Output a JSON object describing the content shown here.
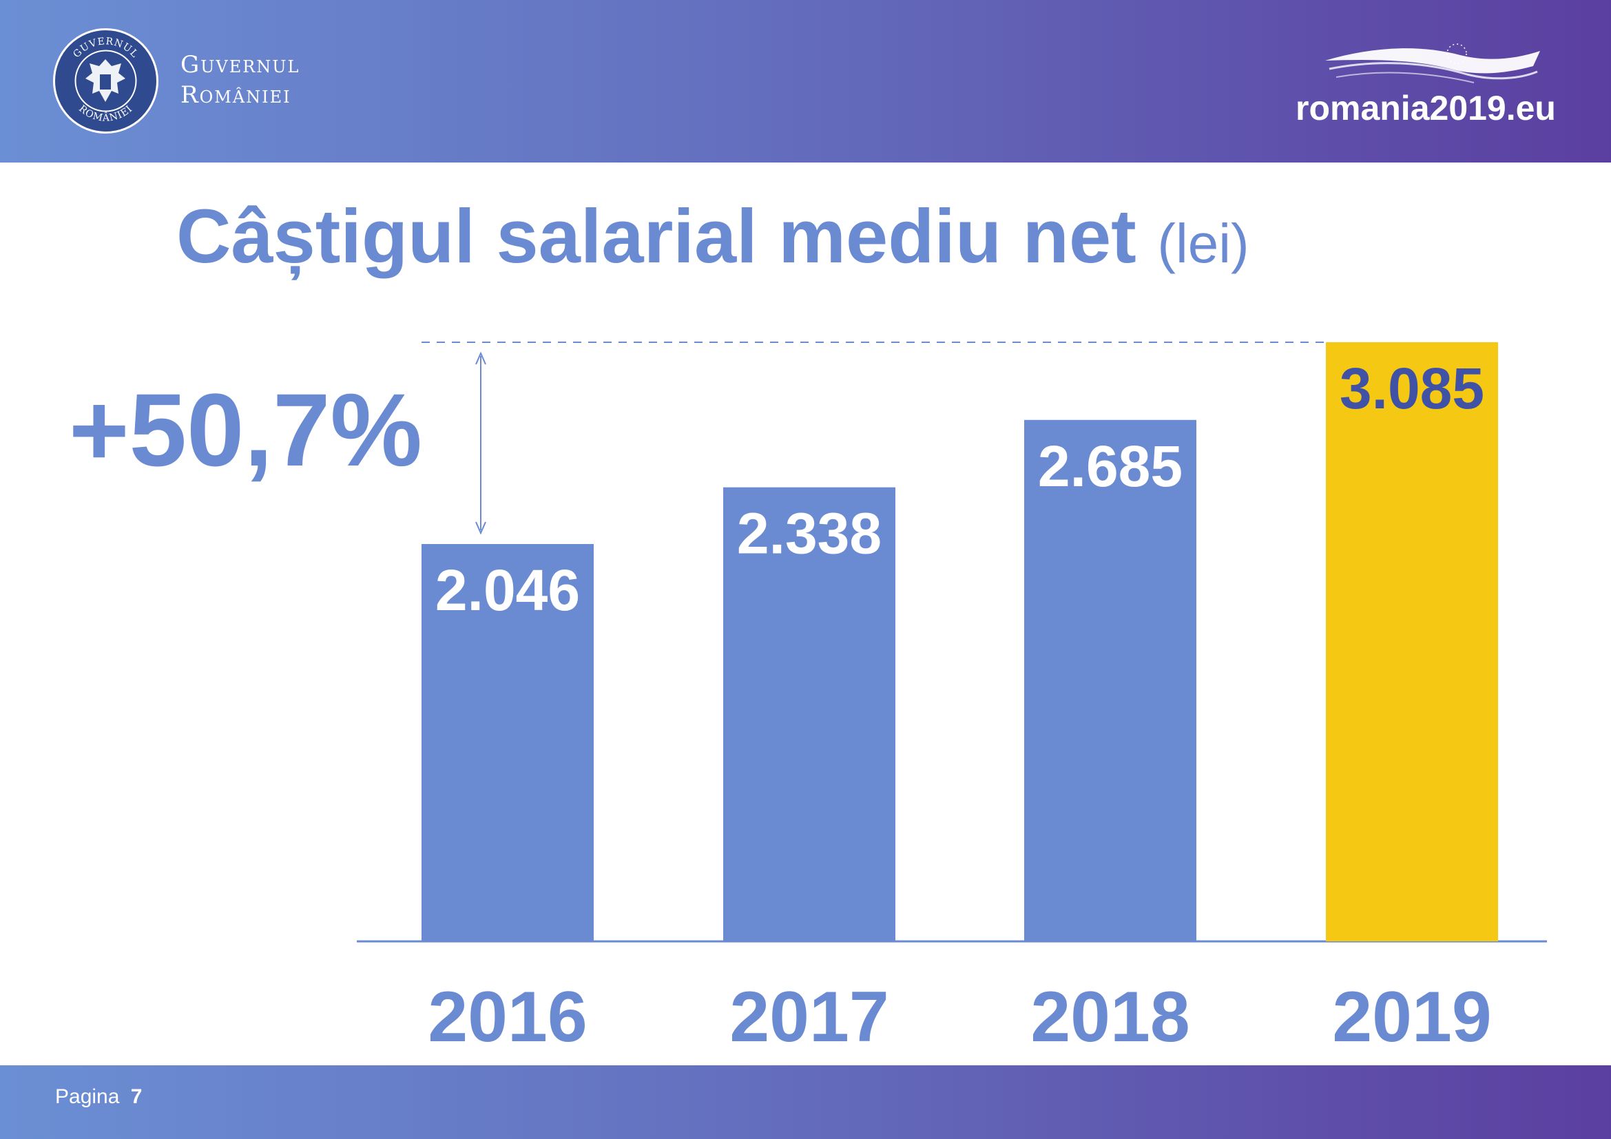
{
  "header": {
    "gov_line1": "Guvernul",
    "gov_line2": "României",
    "seal_text": "GUVERNUL ROMÂNIEI",
    "website": "romania2019.eu",
    "seal_icon": "romanian-coat-of-arms-icon",
    "eu_icon": "eu-presidency-flag-icon"
  },
  "title": {
    "main": "Câștigul salarial mediu net",
    "unit": "(lei)"
  },
  "growth_label": "+50,7%",
  "footer": {
    "page_label": "Pagina",
    "page_number": "7"
  },
  "colors": {
    "bar": "#6a8ad2",
    "highlight": "#f5c913",
    "highlight_text": "#3f52a6",
    "label": "#ffffff"
  },
  "chart_data": {
    "type": "bar",
    "title": "Câștigul salarial mediu net (lei)",
    "xlabel": "",
    "ylabel": "",
    "categories": [
      "2016",
      "2017",
      "2018",
      "2019"
    ],
    "values": [
      2046,
      2338,
      2685,
      3085
    ],
    "value_labels": [
      "2.046",
      "2.338",
      "2.685",
      "3.085"
    ],
    "highlight_index": 3,
    "ylim": [
      0,
      3085
    ],
    "annotation": "+50,7%"
  }
}
